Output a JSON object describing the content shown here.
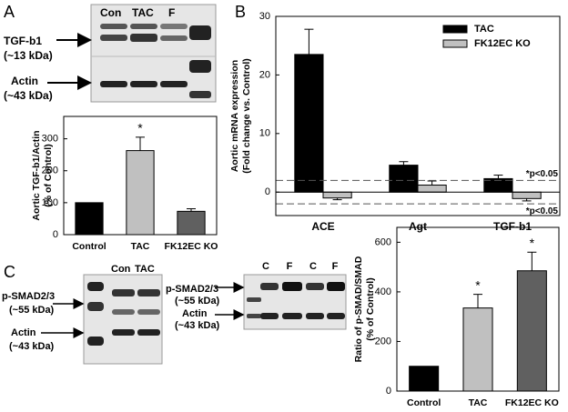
{
  "panel_labels": [
    "A",
    "B",
    "C"
  ],
  "blots": [
    {
      "lanes": [
        "Con",
        "TAC",
        "F"
      ],
      "rows": [
        [
          "TGF-b1",
          "(~13 kDa)"
        ],
        [
          "Actin",
          "(~43 kDa)"
        ]
      ]
    },
    {
      "lanes": [
        "Con",
        "TAC"
      ],
      "rows": [
        [
          "p-SMAD2/3",
          "(~55 kDa)"
        ],
        [
          "Actin",
          "(~43 kDa)"
        ]
      ]
    },
    {
      "lanes": [
        "C",
        "F",
        "C",
        "F"
      ],
      "rows": [
        [
          "p-SMAD2/3",
          "(~55 kDa)"
        ],
        [
          "Actin",
          "(~43 kDa)"
        ]
      ]
    }
  ],
  "chart_data": [
    {
      "type": "bar",
      "ylabel": [
        "Aortic TGF-b1/Actin",
        "(% of Control)"
      ],
      "categories": [
        "Control",
        "TAC",
        "FK12EC KO"
      ],
      "values": [
        100,
        263,
        73
      ],
      "errors": [
        0,
        42,
        8
      ],
      "colors": [
        "#000000",
        "#c0c0c0",
        "#606060"
      ],
      "annotations": [
        {
          "category": "TAC",
          "text": "*"
        }
      ],
      "ylim": [
        0,
        370
      ],
      "yticks": [
        0,
        100,
        200,
        300
      ]
    },
    {
      "type": "grouped_bar",
      "ylabel": [
        "Aortic mRNA expression",
        "(Fold change vs. Control)"
      ],
      "categories": [
        "ACE",
        "Agt",
        "TGF-b1"
      ],
      "series": [
        {
          "name": "TAC",
          "color": "#000000",
          "values": [
            23.5,
            4.6,
            2.3
          ],
          "errors": [
            4.3,
            0.6,
            0.6
          ]
        },
        {
          "name": "FK12EC KO",
          "color": "#c0c0c0",
          "values": [
            -1,
            1.2,
            -1.1
          ],
          "errors": [
            0.3,
            0.7,
            0.4
          ]
        }
      ],
      "reference_lines": [
        {
          "value": 2,
          "label": "*p<0.05"
        },
        {
          "value": -2,
          "label": "*p<0.05"
        }
      ],
      "legend": "upper right",
      "ylim": [
        -4,
        30
      ],
      "yticks": [
        0,
        10,
        20,
        30
      ]
    },
    {
      "type": "bar",
      "ylabel": [
        "Ratio of p-SMAD/SMAD",
        "(% of Control)"
      ],
      "categories": [
        "Control",
        "TAC",
        "FK12EC KO"
      ],
      "values": [
        100,
        335,
        485
      ],
      "errors": [
        0,
        55,
        75
      ],
      "colors": [
        "#000000",
        "#c0c0c0",
        "#606060"
      ],
      "annotations": [
        {
          "category": "TAC",
          "text": "*"
        },
        {
          "category": "FK12EC KO",
          "text": "*"
        }
      ],
      "ylim": [
        0,
        660
      ],
      "yticks": [
        0,
        200,
        400,
        600
      ]
    }
  ]
}
